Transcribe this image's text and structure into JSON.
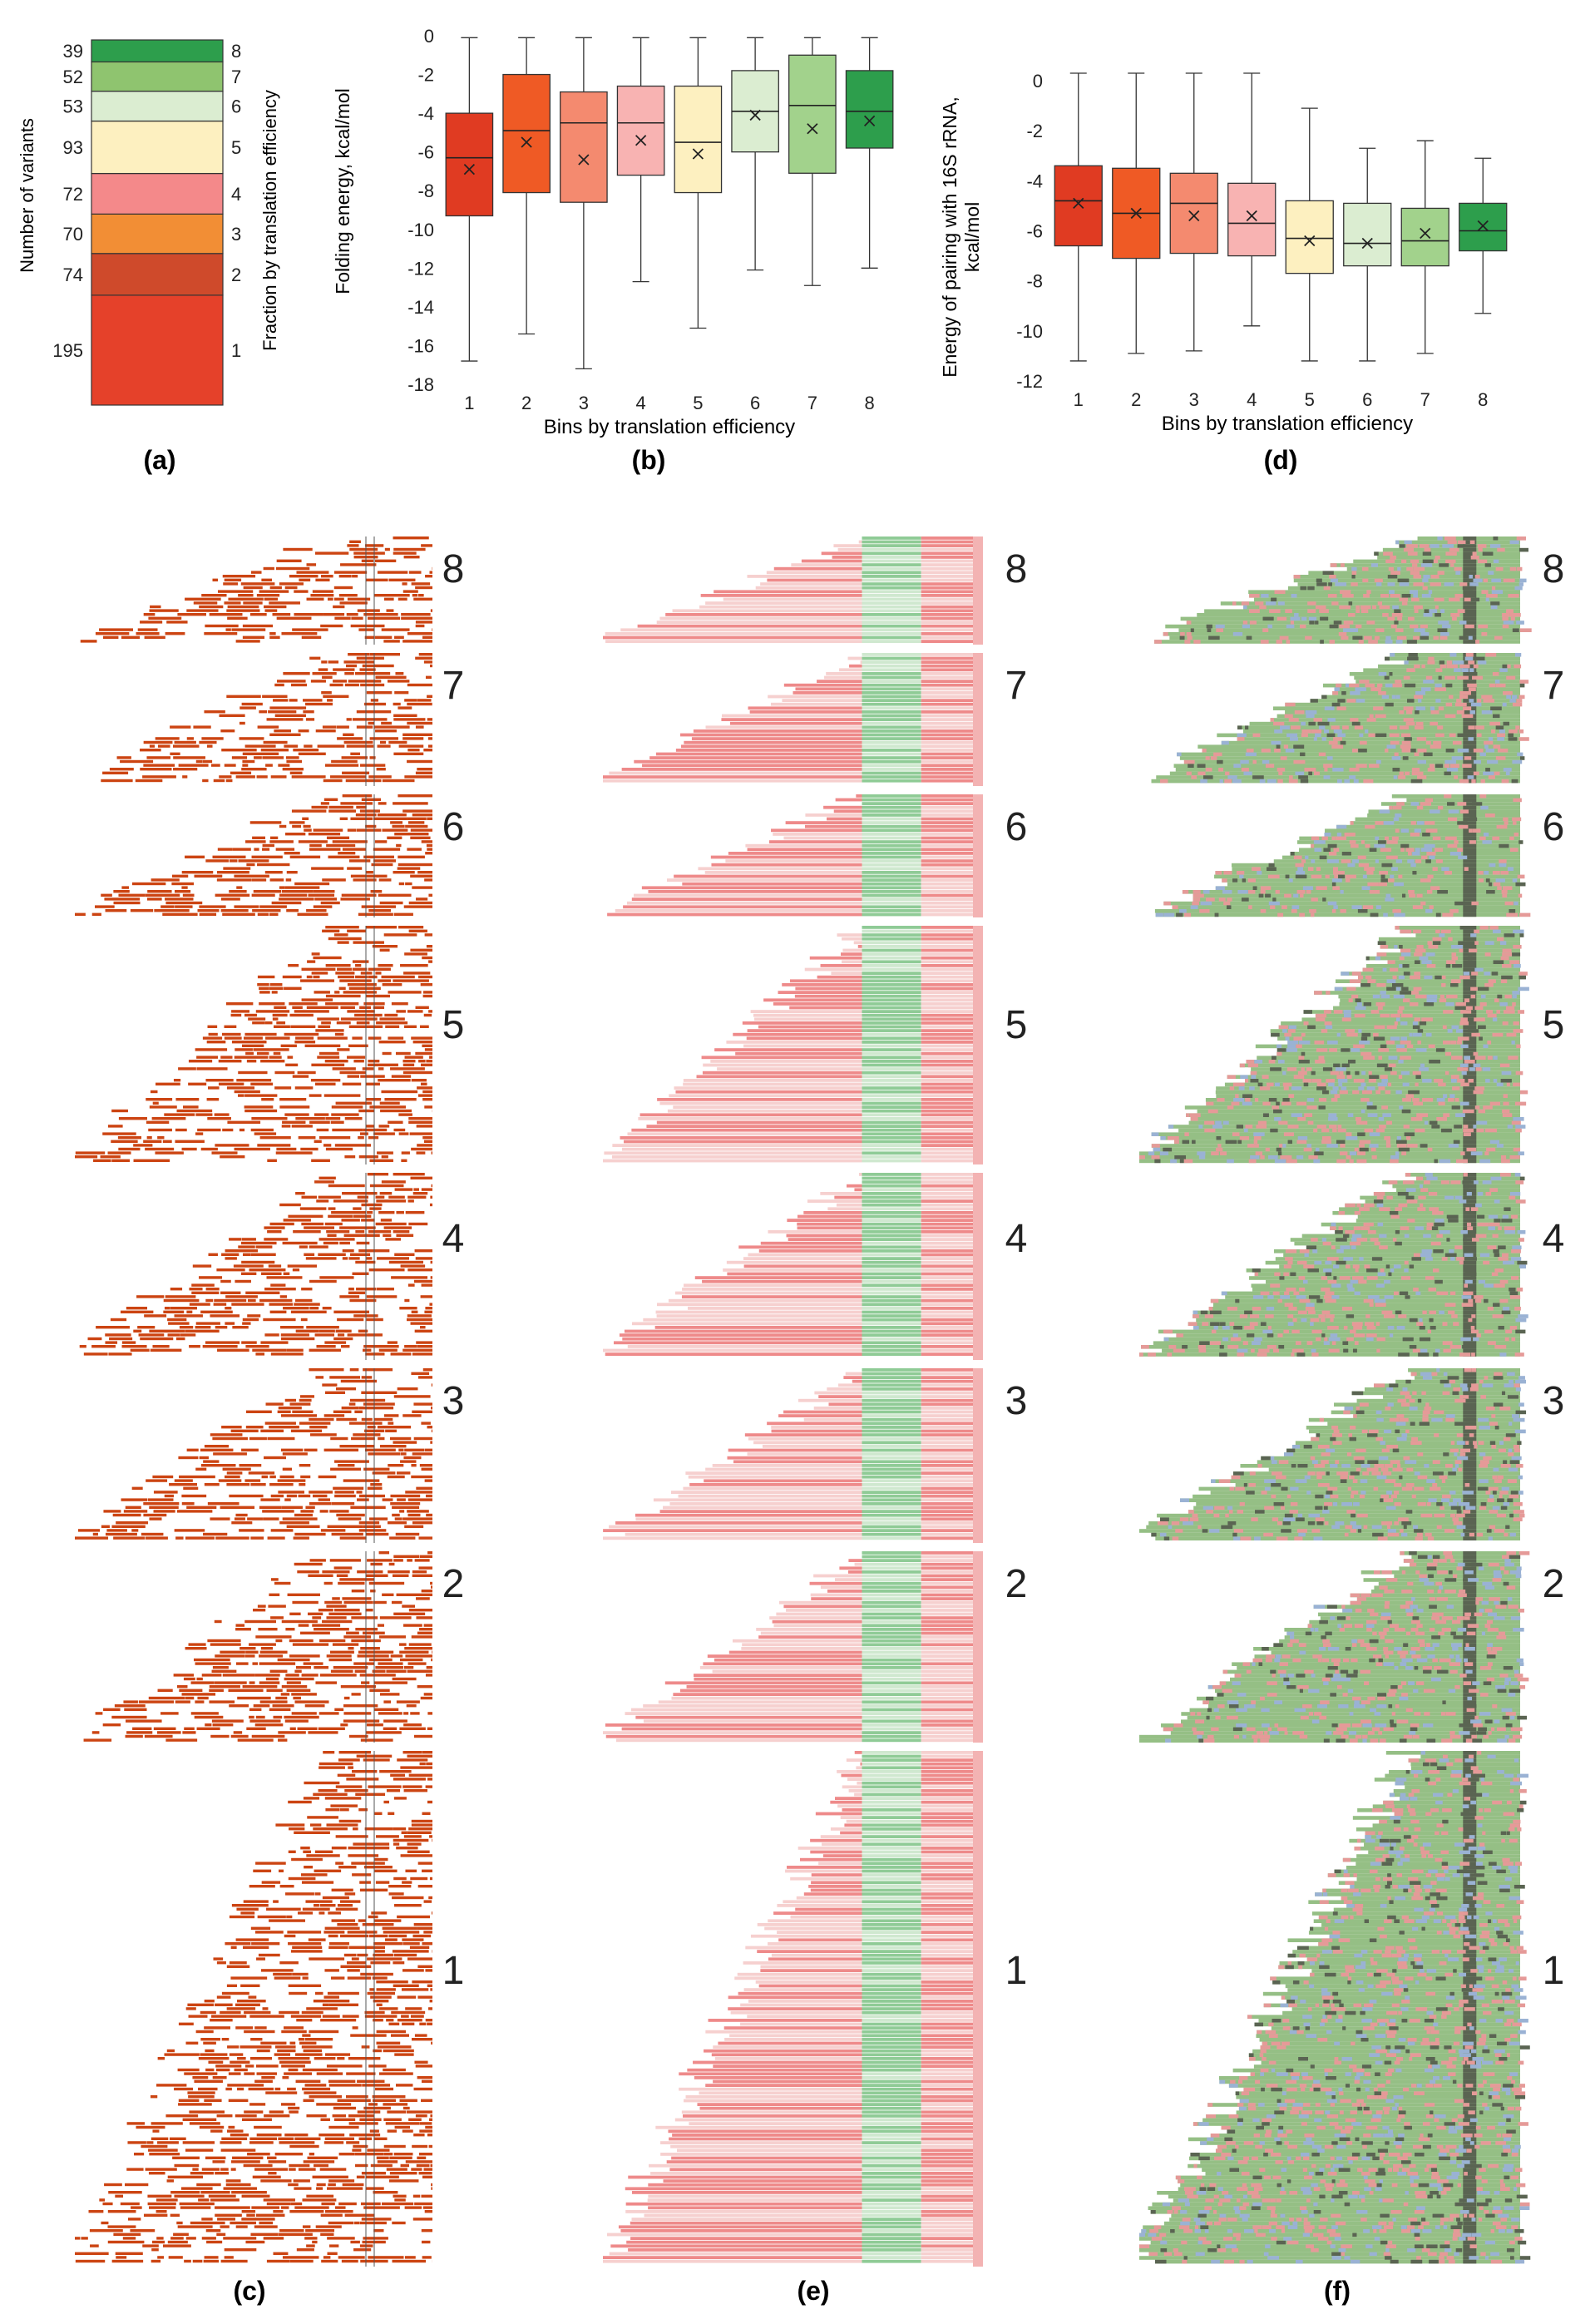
{
  "panel_labels": {
    "a": "(a)",
    "b": "(b)",
    "c": "(c)",
    "d": "(d)",
    "e": "(e)",
    "f": "(f)"
  },
  "colors": {
    "bin1": "#e5412a",
    "bin2": "#cf4a2b",
    "bin3": "#f28e35",
    "bin4": "#f4898a",
    "bin5": "#fdf0c0",
    "bin6": "#dbedd1",
    "bin7": "#8fc46f",
    "bin8": "#2d9e4c",
    "box1": "#e03b22",
    "box2": "#ef5a25",
    "box3": "#f48a6f",
    "box4": "#f8b3b2",
    "box5": "#fdf0c0",
    "box6": "#dbedd1",
    "box7": "#a2d28c",
    "box8": "#2d9e4c",
    "c_mark": "#cc4412",
    "e_red": "#ee8a8a",
    "e_pale": "#f6d0cf",
    "e_green": "#8fcb96",
    "e_lightgreen": "#cfe8cf",
    "f_green": "#95bf85",
    "f_pink": "#e59a98",
    "f_blue": "#9ab2d4",
    "f_dark": "#5a6452"
  },
  "chart_data": [
    {
      "id": "a",
      "type": "bar",
      "stacked": true,
      "title": "",
      "ylabel_left": "Number of variants",
      "ylabel_right": "Fraction by translation efficiency",
      "categories": [
        "1",
        "2",
        "3",
        "4",
        "5",
        "6",
        "7",
        "8"
      ],
      "values": [
        195,
        74,
        70,
        72,
        93,
        53,
        52,
        39
      ],
      "value_labels": [
        "195",
        "74",
        "70",
        "72",
        "93",
        "53",
        "52",
        "39"
      ]
    },
    {
      "id": "b",
      "type": "box",
      "xlabel": "Bins by translation efficiency",
      "ylabel": "Folding energy, kcal/mol",
      "ylim": [
        -18,
        0
      ],
      "yticks": [
        "0",
        "-2",
        "-4",
        "-6",
        "-8",
        "-10",
        "-12",
        "-14",
        "-16",
        "-18"
      ],
      "ytick_values": [
        0,
        -2,
        -4,
        -6,
        -8,
        -10,
        -12,
        -14,
        -16,
        -18
      ],
      "categories": [
        "1",
        "2",
        "3",
        "4",
        "5",
        "6",
        "7",
        "8"
      ],
      "whisker_high": [
        -4.1,
        -2.3,
        -3.8,
        -3.5,
        -3.6,
        -1.9,
        -1.8,
        -1.9
      ],
      "q3": [
        -4.0,
        -2.0,
        -2.9,
        -2.6,
        -2.6,
        -1.8,
        -1.0,
        -1.8
      ],
      "median": [
        -6.3,
        -4.9,
        -4.5,
        -4.5,
        -5.5,
        -3.9,
        -3.6,
        -3.9
      ],
      "mean": [
        -6.9,
        -5.5,
        -6.4,
        -5.4,
        -6.1,
        -4.1,
        -4.8,
        -4.4
      ],
      "q1": [
        -9.3,
        -8.1,
        -8.6,
        -7.2,
        -8.1,
        -6.0,
        -7.1,
        -5.8
      ],
      "whisker_low": [
        -16.8,
        -15.4,
        -17.2,
        -12.7,
        -15.1,
        -12.1,
        -12.9,
        -12.0
      ],
      "whisker_top": [
        -0.1,
        -0.1,
        -0.1,
        -0.1,
        -0.1,
        -0.1,
        -0.1,
        -0.1
      ]
    },
    {
      "id": "d",
      "type": "box",
      "xlabel": "Bins by translation efficiency",
      "ylabel": "Energy of pairing with 16S rRNA, kcal/mol",
      "ylabel_lines": [
        "Energy of pairing with 16S rRNA,",
        "kcal/mol"
      ],
      "ylim": [
        -12,
        0
      ],
      "yticks": [
        "0",
        "-2",
        "-4",
        "-6",
        "-8",
        "-10",
        "-12"
      ],
      "ytick_values": [
        0,
        -2,
        -4,
        -6,
        -8,
        -10,
        -12
      ],
      "categories": [
        "1",
        "2",
        "3",
        "4",
        "5",
        "6",
        "7",
        "8"
      ],
      "whisker_top": [
        0.3,
        0.3,
        0.3,
        0.3,
        -1.1,
        -2.7,
        -2.4,
        -3.1
      ],
      "q3": [
        -3.4,
        -3.5,
        -3.7,
        -4.1,
        -4.8,
        -4.9,
        -5.1,
        -4.9
      ],
      "median": [
        -4.8,
        -5.3,
        -4.9,
        -5.7,
        -6.3,
        -6.5,
        -6.4,
        -6.0
      ],
      "mean": [
        -4.9,
        -5.3,
        -5.4,
        -5.4,
        -6.4,
        -6.5,
        -6.1,
        -5.8
      ],
      "q1": [
        -6.6,
        -7.1,
        -6.9,
        -7.0,
        -7.7,
        -7.4,
        -7.4,
        -6.8
      ],
      "whisker_low": [
        -11.2,
        -10.9,
        -10.8,
        -9.8,
        -11.2,
        -11.2,
        -10.9,
        -9.3
      ]
    },
    {
      "id": "c",
      "type": "heatmap",
      "description_hidden": true,
      "bins": [
        "8",
        "7",
        "6",
        "5",
        "4",
        "3",
        "2",
        "1"
      ]
    },
    {
      "id": "e",
      "type": "heatmap",
      "bins": [
        "8",
        "7",
        "6",
        "5",
        "4",
        "3",
        "2",
        "1"
      ]
    },
    {
      "id": "f",
      "type": "heatmap",
      "bins": [
        "8",
        "7",
        "6",
        "5",
        "4",
        "3",
        "2",
        "1"
      ]
    }
  ]
}
